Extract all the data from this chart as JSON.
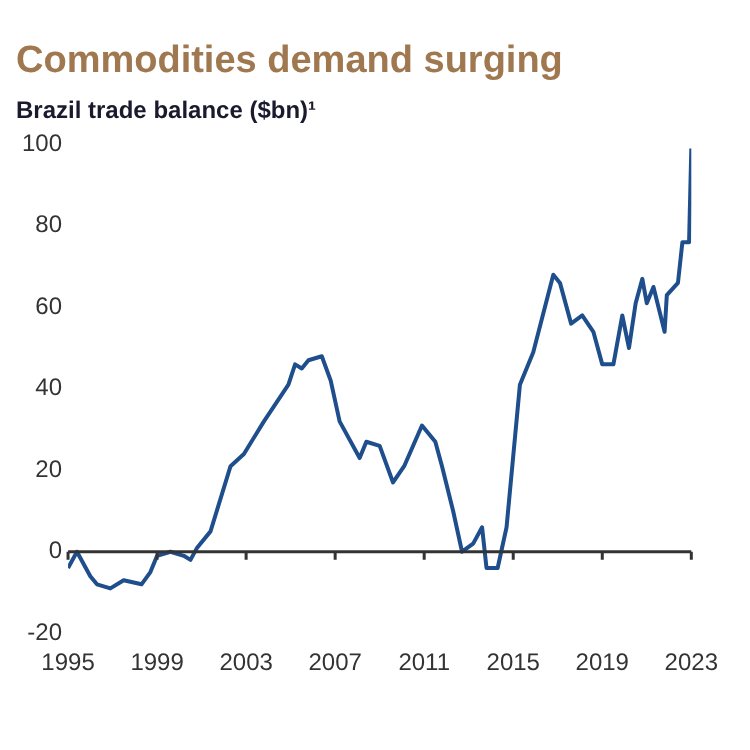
{
  "chart_data": {
    "type": "line",
    "title": "Commodities demand surging",
    "subtitle": "Brazil trade balance ($bn)¹",
    "x": [
      1995.0,
      1995.4,
      1996.0,
      1996.3,
      1996.9,
      1997.5,
      1998.3,
      1998.7,
      1999.0,
      1999.6,
      2000.2,
      2000.5,
      2000.8,
      2001.4,
      2002.3,
      2002.9,
      2003.8,
      2004.9,
      2005.2,
      2005.5,
      2005.8,
      2006.4,
      2006.8,
      2007.2,
      2008.1,
      2008.4,
      2009.0,
      2009.6,
      2010.1,
      2010.9,
      2011.5,
      2011.8,
      2012.3,
      2012.7,
      2013.2,
      2013.6,
      2013.8,
      2014.3,
      2014.7,
      2015.3,
      2015.9,
      2016.8,
      2017.1,
      2017.6,
      2018.1,
      2018.6,
      2019.0,
      2019.5,
      2019.9,
      2020.2,
      2020.5,
      2020.8,
      2021.0,
      2021.3,
      2021.8,
      2021.9,
      2022.4,
      2022.6,
      2022.9,
      2023.0
    ],
    "series": [
      {
        "color": "#1f4e8c",
        "values": [
          -4,
          0,
          -6,
          -8,
          -9,
          -7,
          -8,
          -5,
          -1,
          0,
          -1,
          -2,
          1,
          5,
          21,
          24,
          32,
          41,
          46,
          45,
          47,
          48,
          42,
          32,
          23,
          27,
          26,
          17,
          21,
          31,
          27,
          21,
          10,
          0,
          2,
          6,
          -4,
          -4,
          6,
          41,
          49,
          68,
          66,
          56,
          58,
          54,
          46,
          46,
          58,
          50,
          61,
          67,
          61,
          65,
          54,
          63,
          66,
          76,
          76,
          99
        ]
      }
    ],
    "xlim": [
      1995,
      2023
    ],
    "xticks": [
      1995,
      1999,
      2003,
      2007,
      2011,
      2015,
      2019,
      2023
    ],
    "ylim": [
      -20,
      100
    ],
    "yticks": [
      -20,
      0,
      20,
      40,
      60,
      80,
      100
    ],
    "ref_lines": [
      {
        "axis": "y",
        "value": 0,
        "color": "#333333"
      }
    ],
    "grid": false,
    "legend": false,
    "marker": "none",
    "line_style": "solid"
  }
}
